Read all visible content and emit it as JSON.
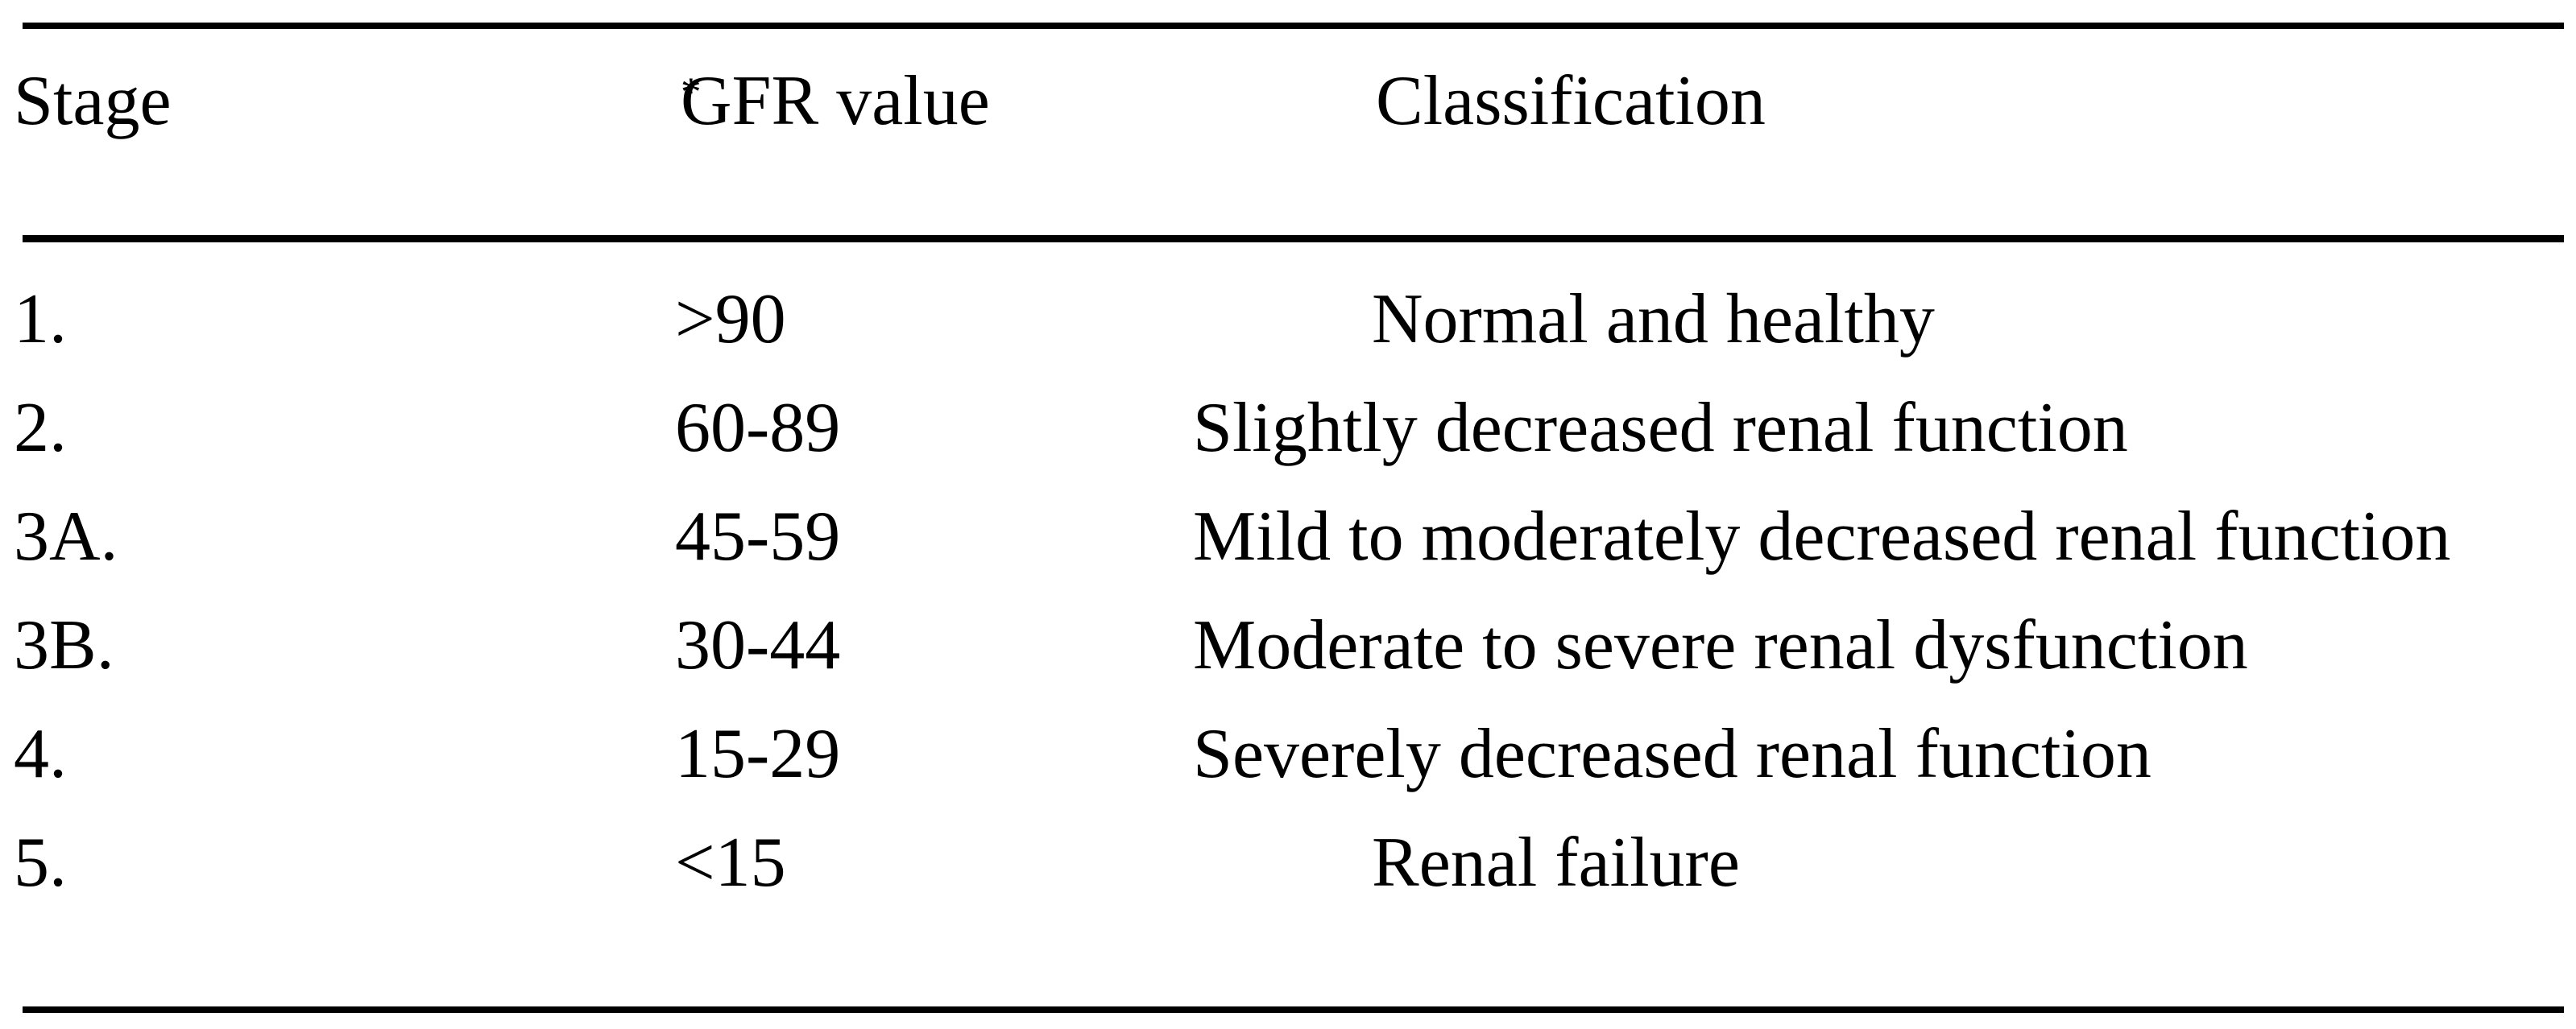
{
  "table": {
    "columns": [
      {
        "label": "Stage",
        "marker": ""
      },
      {
        "label": "GFR value",
        "marker": "*"
      },
      {
        "label": "Classification",
        "marker": ""
      }
    ],
    "rows": [
      {
        "stage": "1.",
        "gfr": ">90",
        "classification": "Normal and healthy",
        "indent": true
      },
      {
        "stage": "2.",
        "gfr": "60-89",
        "classification": "Slightly decreased renal function",
        "indent": false
      },
      {
        "stage": "3A.",
        "gfr": "45-59",
        "classification": "Mild to moderately decreased renal function",
        "indent": false
      },
      {
        "stage": "3B.",
        "gfr": "30-44",
        "classification": "Moderate to severe renal dysfunction",
        "indent": false
      },
      {
        "stage": "4.",
        "gfr": "15-29",
        "classification": "Severely decreased renal function",
        "indent": false
      },
      {
        "stage": "5.",
        "gfr": "<15",
        "classification": "Renal failure",
        "indent": true
      }
    ],
    "colors": {
      "text": "#000000",
      "background": "#ffffff",
      "rule": "#000000"
    }
  }
}
